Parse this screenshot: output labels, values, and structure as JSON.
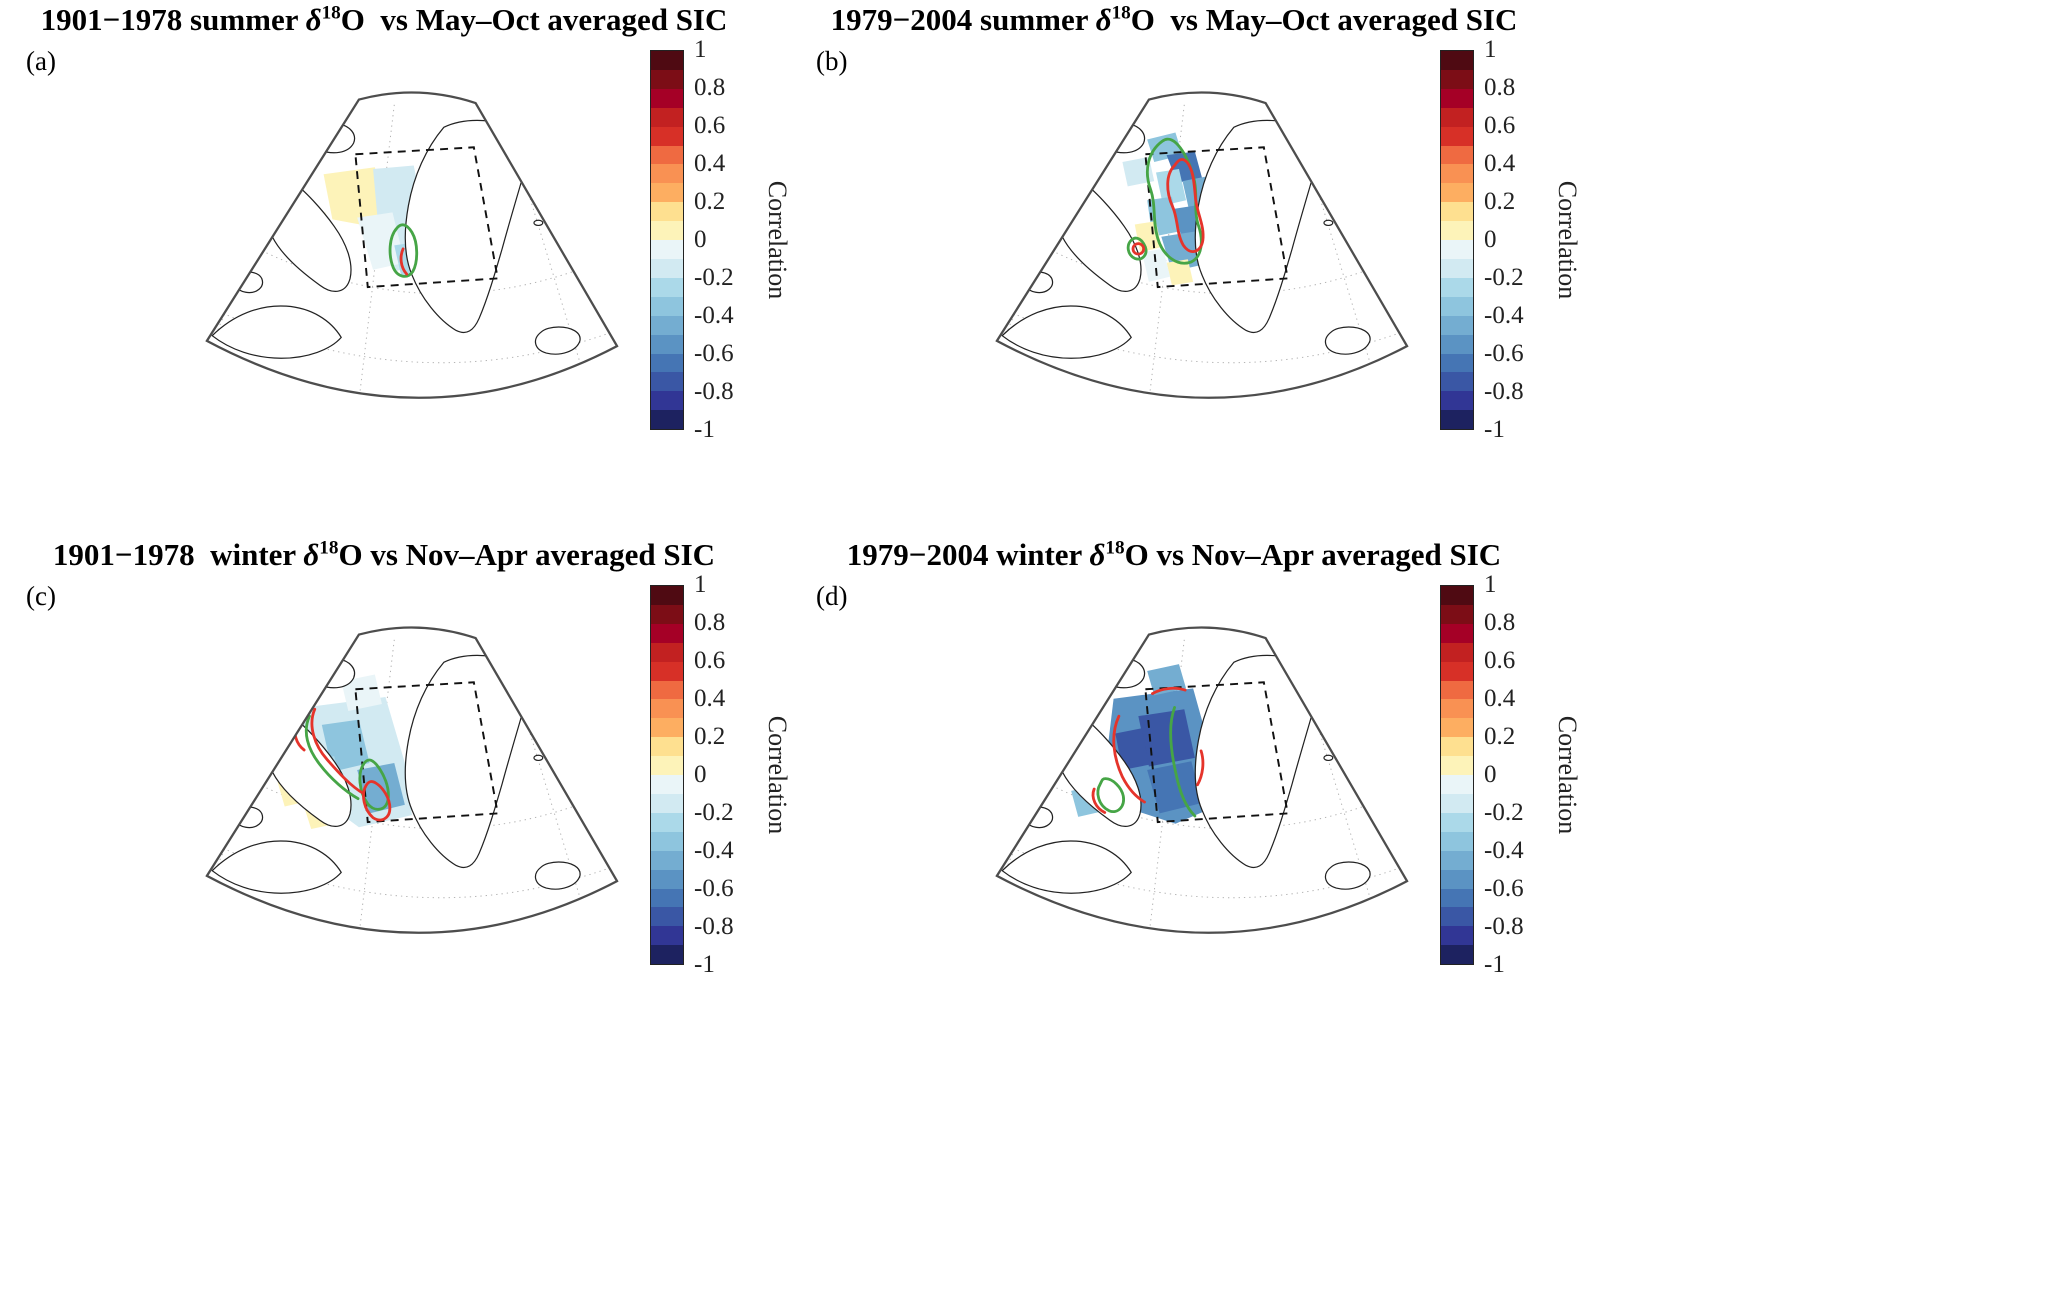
{
  "figure": {
    "panels": [
      {
        "letter": "(a)",
        "title_pre": "1901−1978 summer ",
        "delta": "δ",
        "iso": "18",
        "element": "O",
        "title_post": "  vs May–Oct averaged SIC"
      },
      {
        "letter": "(b)",
        "title_pre": "1979−2004 summer ",
        "delta": "δ",
        "iso": "18",
        "element": "O",
        "title_post": "  vs May–Oct averaged SIC"
      },
      {
        "letter": "(c)",
        "title_pre": "1901−1978  winter ",
        "delta": "δ",
        "iso": "18",
        "element": "O",
        "title_post": " vs Nov–Apr averaged SIC"
      },
      {
        "letter": "(d)",
        "title_pre": "1979−2004 winter ",
        "delta": "δ",
        "iso": "18",
        "element": "O",
        "title_post": " vs Nov–Apr averaged SIC"
      }
    ],
    "colorbar": {
      "label": "Correlation",
      "ticks": [
        "1",
        "0.8",
        "0.6",
        "0.4",
        "0.2",
        "0",
        "-0.2",
        "-0.4",
        "-0.6",
        "-0.8",
        "-1"
      ],
      "stops": [
        "#4f0a12",
        "#7c0d16",
        "#a50026",
        "#c22121",
        "#d73027",
        "#ef6a41",
        "#f99153",
        "#fdae61",
        "#fee090",
        "#fdf3b9",
        "#eaf5f8",
        "#d2eaf2",
        "#abd9e9",
        "#8ec5de",
        "#74add1",
        "#5b93c3",
        "#4575b4",
        "#3a57a5",
        "#313695",
        "#1d2260"
      ]
    }
  },
  "colors": {
    "green": "#46a546",
    "red": "#e5342b",
    "coast": "#222222",
    "outline": "#4d4d4d",
    "graticule": "#b0b0b0",
    "box": "#111111"
  },
  "chart_data": [
    {
      "type": "heatmap",
      "panel": "a",
      "title": "1901−1978 summer δ18O vs May–Oct averaged SIC",
      "quantity": "Correlation",
      "colorbar_label": "Correlation",
      "colorbar_range": [
        -1,
        1
      ],
      "colorbar_ticks": [
        1,
        0.8,
        0.6,
        0.4,
        0.2,
        0,
        -0.2,
        -0.4,
        -0.6,
        -0.8,
        -1
      ],
      "colormap": "red-yellow-blue diverging (positive = red, negative = blue)",
      "map_region": "Baffin Bay / Davis Strait / west Greenland fan-shaped map with dashed study box",
      "overlays": [
        "green contour lines",
        "red contour lines",
        "dashed study box",
        "dotted graticule"
      ],
      "pattern_summary": "mostly weak correlations (about -0.2 to +0.2): pale yellow patch in northwest Baffin Bay, pale blue band inside the box; one small green+red contour patch near the southwest Greenland coast"
    },
    {
      "type": "heatmap",
      "panel": "b",
      "title": "1979−2004 summer δ18O vs May–Oct averaged SIC",
      "quantity": "Correlation",
      "colorbar_label": "Correlation",
      "colorbar_range": [
        -1,
        1
      ],
      "colorbar_ticks": [
        1,
        0.8,
        0.6,
        0.4,
        0.2,
        0,
        -0.2,
        -0.4,
        -0.6,
        -0.8,
        -1
      ],
      "colormap": "red-yellow-blue diverging (positive = red, negative = blue)",
      "map_region": "Baffin Bay / Davis Strait / west Greenland fan-shaped map with dashed study box",
      "overlays": [
        "green contour lines",
        "red contour lines",
        "dashed study box",
        "dotted graticule"
      ],
      "pattern_summary": "moderate-to-strong negative correlations (about -0.3 to -0.7) hugging the west Greenland coast with large green and red contour loops; a few weak yellow (positive) patches in the southern box"
    },
    {
      "type": "heatmap",
      "panel": "c",
      "title": "1901−1978 winter δ18O vs Nov–Apr averaged SIC",
      "quantity": "Correlation",
      "colorbar_label": "Correlation",
      "colorbar_range": [
        -1,
        1
      ],
      "colorbar_ticks": [
        1,
        0.8,
        0.6,
        0.4,
        0.2,
        0,
        -0.2,
        -0.4,
        -0.6,
        -0.8,
        -1
      ],
      "colormap": "red-yellow-blue diverging (positive = red, negative = blue)",
      "map_region": "Baffin Bay / Davis Strait / west Greenland fan-shaped map with dashed study box",
      "overlays": [
        "green contour lines",
        "red contour lines",
        "dashed study box",
        "dotted graticule"
      ],
      "pattern_summary": "widespread weak-to-moderate negative correlations (about -0.2 to -0.4) over Baffin Bay; green and red contour segments run along the Baffin Island coast and through the central/southern box; small pale yellow patches in the lower-left"
    },
    {
      "type": "heatmap",
      "panel": "d",
      "title": "1979−2004 winter δ18O vs Nov–Apr averaged SIC",
      "quantity": "Correlation",
      "colorbar_label": "Correlation",
      "colorbar_range": [
        -1,
        1
      ],
      "colorbar_ticks": [
        1,
        0.8,
        0.6,
        0.4,
        0.2,
        0,
        -0.2,
        -0.4,
        -0.6,
        -0.8,
        -1
      ],
      "colormap": "red-yellow-blue diverging (positive = red, negative = blue)",
      "map_region": "Baffin Bay / Davis Strait / west Greenland fan-shaped map with dashed study box",
      "overlays": [
        "green contour lines",
        "red contour lines",
        "dashed study box",
        "dotted graticule"
      ],
      "pattern_summary": "strong negative correlations (about -0.5 to -0.8, dark blue) filling most of the study box and extending to the lower-left; green and red contour segments within the blue field"
    }
  ]
}
